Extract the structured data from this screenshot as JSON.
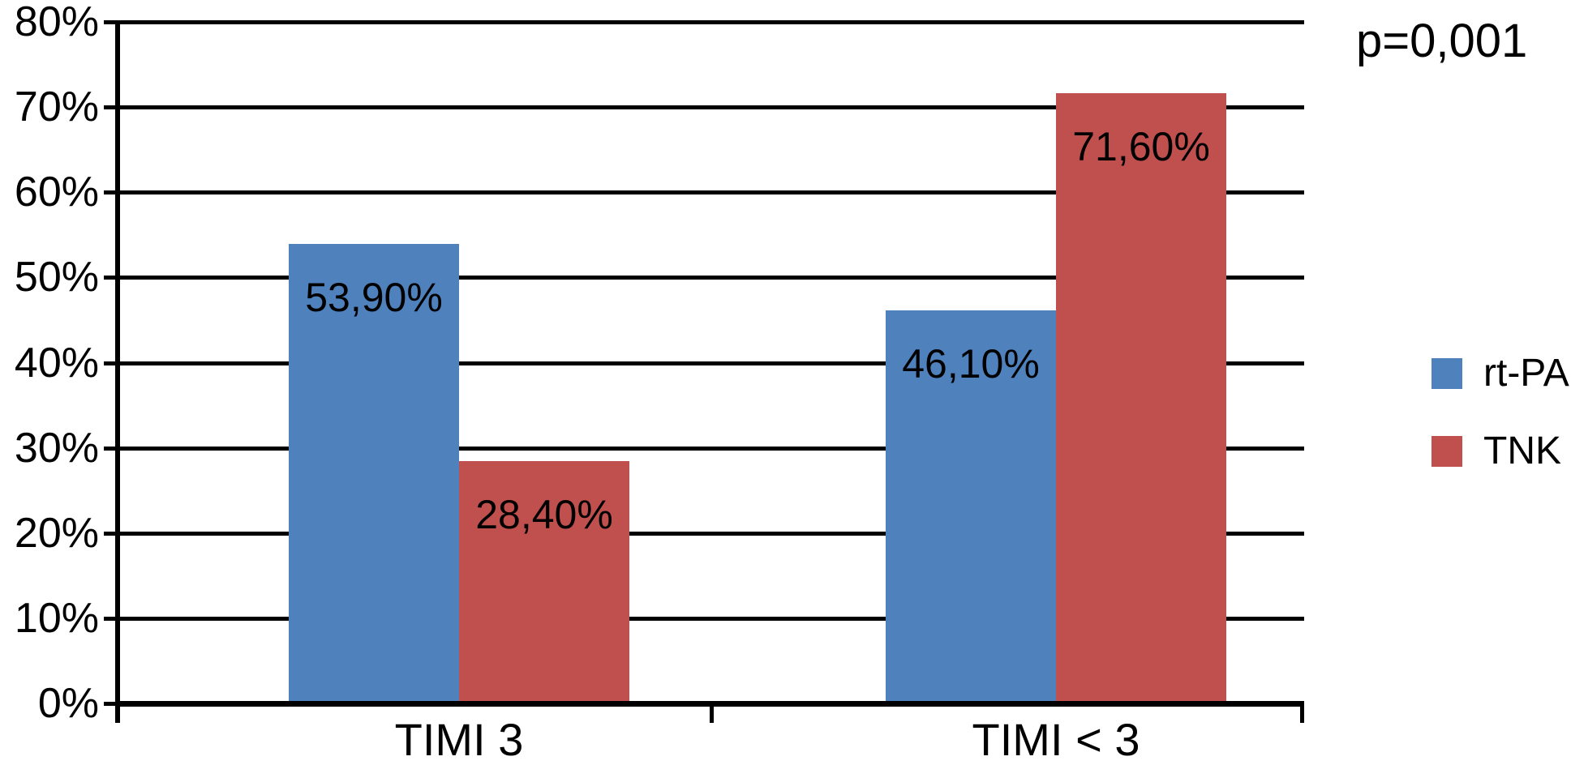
{
  "chart_data": {
    "type": "bar",
    "title": "",
    "xlabel": "",
    "ylabel": "",
    "categories": [
      "TIMI 3",
      "TIMI < 3"
    ],
    "series": [
      {
        "name": "rt-PA",
        "color": "#4F81BD",
        "values": [
          53.9,
          46.1
        ],
        "data_labels": [
          "53,90%",
          "46,10%"
        ]
      },
      {
        "name": "TNK",
        "color": "#C0504D",
        "values": [
          28.4,
          71.6
        ],
        "data_labels": [
          "28,40%",
          "71,60%"
        ]
      }
    ],
    "ylim": [
      0,
      80
    ],
    "y_tick_step": 10,
    "y_tick_labels": [
      "0%",
      "10%",
      "20%",
      "30%",
      "40%",
      "50%",
      "60%",
      "70%",
      "80%"
    ],
    "annotation": "p=0,001",
    "grid": true,
    "legend_position": "right",
    "axis_color": "#000000",
    "text_color": "#000000",
    "background_color": "#ffffff"
  }
}
